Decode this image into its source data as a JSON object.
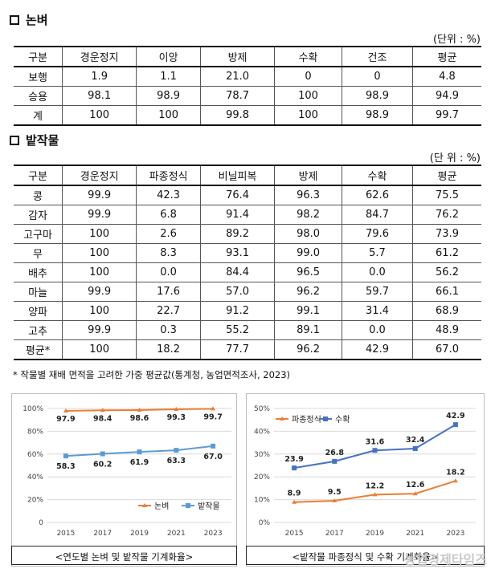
{
  "section1": {
    "title": "논벼",
    "unit": "(단위 : %)",
    "headers": [
      "구분",
      "경운정지",
      "이앙",
      "방제",
      "수확",
      "건조",
      "평균"
    ],
    "rows": [
      [
        "보행",
        "1.9",
        "1.1",
        "21.0",
        "0",
        "0",
        "4.8"
      ],
      [
        "승용",
        "98.1",
        "98.9",
        "78.7",
        "100",
        "98.9",
        "94.9"
      ],
      [
        "계",
        "100",
        "100",
        "99.8",
        "100",
        "98.9",
        "99.7"
      ]
    ]
  },
  "section2": {
    "title": "밭작물",
    "unit": "(단 위 : %)",
    "headers": [
      "구분",
      "경운정지",
      "파종정식",
      "비닐피복",
      "방제",
      "수확",
      "평균"
    ],
    "rows": [
      [
        "콩",
        "99.9",
        "42.3",
        "76.4",
        "96.3",
        "62.6",
        "75.5"
      ],
      [
        "감자",
        "99.9",
        "6.8",
        "91.4",
        "98.2",
        "84.7",
        "76.2"
      ],
      [
        "고구마",
        "100",
        "2.6",
        "89.2",
        "98.0",
        "79.6",
        "73.9"
      ],
      [
        "무",
        "100",
        "8.3",
        "93.1",
        "99.0",
        "5.7",
        "61.2"
      ],
      [
        "배추",
        "100",
        "0.0",
        "84.4",
        "96.5",
        "0.0",
        "56.2"
      ],
      [
        "마늘",
        "99.9",
        "17.6",
        "57.0",
        "96.2",
        "59.7",
        "66.1"
      ],
      [
        "양파",
        "100",
        "22.7",
        "91.2",
        "99.1",
        "31.4",
        "68.9"
      ],
      [
        "고추",
        "99.9",
        "0.3",
        "55.2",
        "89.1",
        "0.0",
        "48.9"
      ],
      [
        "평균*",
        "100",
        "18.2",
        "77.7",
        "96.2",
        "42.9",
        "67.0"
      ]
    ],
    "note": "* 작물별 재배 면적을 고려한 가중 평균값(통계청, 농업면적조사, 2023)"
  },
  "chart_data": [
    {
      "type": "line",
      "x": [
        "2015",
        "2017",
        "2019",
        "2021",
        "2023"
      ],
      "series": [
        {
          "name": "논벼",
          "values": [
            97.9,
            98.4,
            98.6,
            99.3,
            99.7
          ],
          "color": "#ed7d31",
          "labels": [
            "97.9",
            "98.4",
            "98.6",
            "99.3",
            "99.7"
          ]
        },
        {
          "name": "밭작물",
          "values": [
            58.3,
            60.2,
            61.9,
            63.3,
            67.0
          ],
          "color": "#5b9bd5",
          "labels": [
            "58.3",
            "60.2",
            "61.9",
            "63.3",
            "67.0"
          ]
        }
      ],
      "ylim": [
        0,
        100
      ],
      "yticks": [
        "0",
        "20%",
        "40%",
        "60%",
        "80%",
        "100%"
      ],
      "ytick_values": [
        0,
        20,
        40,
        60,
        80,
        100
      ],
      "legend": "bottom-right",
      "caption": "<연도별 논벼 및 밭작물 기계화율>"
    },
    {
      "type": "line",
      "x": [
        "2015",
        "2017",
        "2019",
        "2021",
        "2023"
      ],
      "series": [
        {
          "name": "파종정식",
          "values": [
            8.9,
            9.5,
            12.2,
            12.6,
            18.2
          ],
          "color": "#ed7d31",
          "labels": [
            "8.9",
            "9.5",
            "12.2",
            "12.6",
            "18.2"
          ]
        },
        {
          "name": "수확",
          "values": [
            23.9,
            26.8,
            31.6,
            32.4,
            42.9
          ],
          "color": "#4472c4",
          "labels": [
            "23.9",
            "26.8",
            "31.6",
            "32.4",
            "42.9"
          ]
        }
      ],
      "ylim": [
        0,
        50
      ],
      "yticks": [
        "0%",
        "10%",
        "20%",
        "30%",
        "40%",
        "50%"
      ],
      "ytick_values": [
        0,
        10,
        20,
        30,
        40,
        50
      ],
      "legend": "top-left",
      "caption": "<밭작물 파종정식 및 수확 기계화율>"
    }
  ],
  "watermark": "농업경제타임즈"
}
